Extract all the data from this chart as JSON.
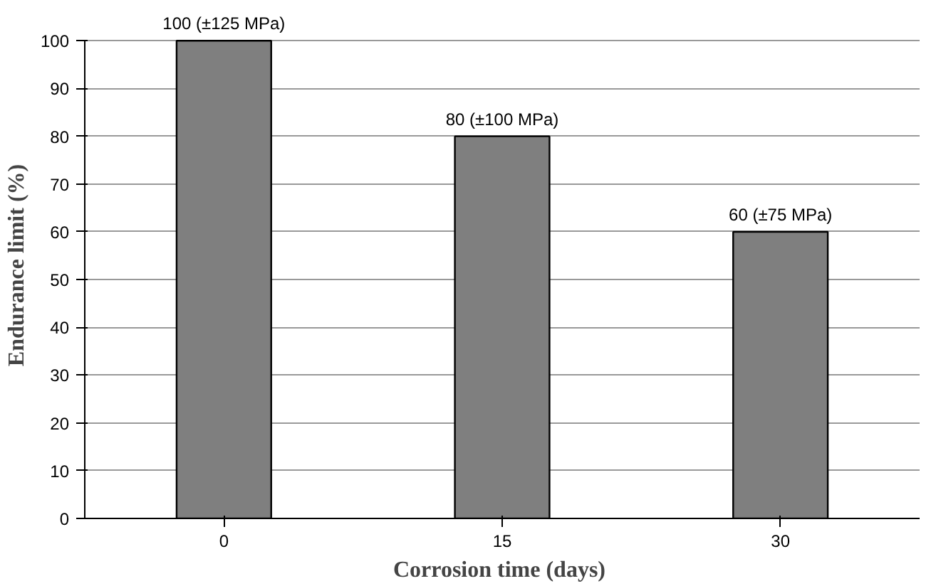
{
  "chart_data": {
    "type": "bar",
    "xlabel": "Corrosion time  (days)",
    "ylabel": "Endurance limit (%)",
    "categories": [
      "0",
      "15",
      "30"
    ],
    "values": [
      100,
      80,
      60
    ],
    "value_labels": [
      "100 (±125 MPa)",
      "80 (±100 MPa)",
      "60 (±75 MPa)"
    ],
    "color": "#7f7f7f",
    "ylim": [
      0,
      100
    ],
    "yticks": [
      0,
      10,
      20,
      30,
      40,
      50,
      60,
      70,
      80,
      90,
      100
    ],
    "grid": "y",
    "legend": false
  }
}
